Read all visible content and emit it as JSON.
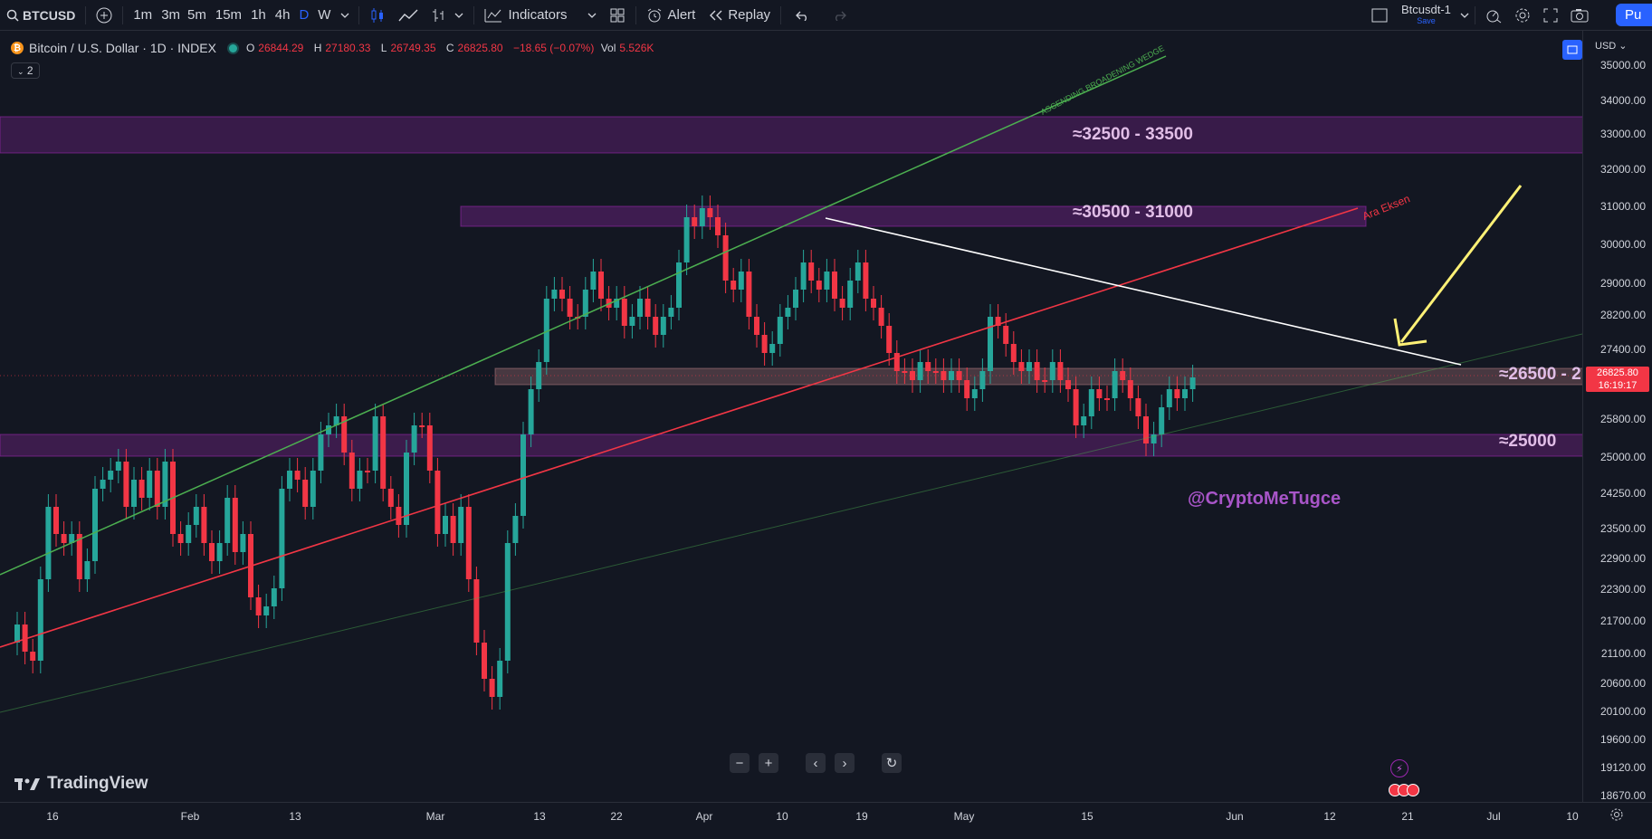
{
  "toolbar": {
    "symbol": "BTCUSD",
    "intervals": [
      "1m",
      "3m",
      "5m",
      "15m",
      "1h",
      "4h",
      "D",
      "W"
    ],
    "active_interval": "D",
    "indicators_label": "Indicators",
    "alert_label": "Alert",
    "replay_label": "Replay",
    "layout_name": "Btcusdt-1",
    "layout_status": "Save",
    "publish_label": "Pu"
  },
  "legend": {
    "title": "Bitcoin / U.S. Dollar · 1D · INDEX",
    "open_label": "O",
    "open": "26844.29",
    "high_label": "H",
    "high": "27180.33",
    "low_label": "L",
    "low": "26749.35",
    "close_label": "C",
    "close": "26825.80",
    "change": "−18.65 (−0.07%)",
    "vol_label": "Vol",
    "vol": "5.526K",
    "collapsed_count": "2"
  },
  "price_axis": {
    "currency": "USD",
    "labels": [
      "35000.00",
      "34000.00",
      "33000.00",
      "32000.00",
      "31000.00",
      "30000.00",
      "29000.00",
      "28200.00",
      "27400.00",
      "25800.00",
      "25000.00",
      "24250.00",
      "23500.00",
      "22900.00",
      "22300.00",
      "21700.00",
      "21100.00",
      "20600.00",
      "20100.00",
      "19600.00",
      "19120.00",
      "18670.00"
    ],
    "last_price": "26825.80",
    "countdown": "16:19:17"
  },
  "time_axis": {
    "labels": [
      "16",
      "Feb",
      "13",
      "Mar",
      "13",
      "22",
      "Apr",
      "10",
      "19",
      "May",
      "15",
      "Jun",
      "12",
      "21",
      "Jul",
      "10"
    ]
  },
  "zones": [
    {
      "label": "≈32500 - 33500"
    },
    {
      "label": "≈30500 - 31000"
    },
    {
      "label": "≈26500 - 2"
    },
    {
      "label": "≈25000"
    }
  ],
  "drawings": {
    "wedge_label": "ASCENDING BROADENING WEDGE",
    "axis_label": "Ara Eksen"
  },
  "watermark": "@CryptoMeTugce",
  "brand": "TradingView",
  "colors": {
    "up": "#26a69a",
    "down": "#f23645",
    "zone": "#9c27b0",
    "accent": "#2962ff"
  }
}
